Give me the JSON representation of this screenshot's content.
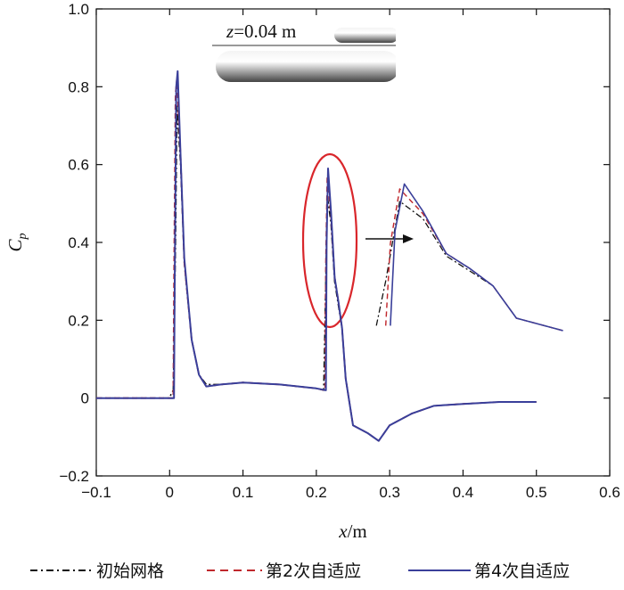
{
  "chart_data": {
    "type": "line",
    "xlabel": "x/m",
    "ylabel": "Cp",
    "xlim": [
      -0.1,
      0.6
    ],
    "ylim": [
      -0.2,
      1.0
    ],
    "x_ticks": [
      "−0.1",
      "0",
      "0.1",
      "0.2",
      "0.3",
      "0.4",
      "0.5",
      "0.6"
    ],
    "y_ticks": [
      "−0.2",
      "0",
      "0.2",
      "0.4",
      "0.6",
      "0.8",
      "1.0"
    ],
    "annotation": "z = 0.04 m",
    "colors": {
      "initial": "#111111",
      "adapt2": "#c0282d",
      "adapt4": "#3a3f9a",
      "highlight": "#d9262b"
    },
    "series": [
      {
        "name": "初始网格",
        "style": "dash-dot",
        "x": [
          -0.1,
          0.0,
          0.002,
          0.005,
          0.008,
          0.01,
          0.015,
          0.02,
          0.03,
          0.04,
          0.05,
          0.07,
          0.1,
          0.15,
          0.2,
          0.21,
          0.212,
          0.215,
          0.22,
          0.225,
          0.23,
          0.235,
          0.24,
          0.25,
          0.27,
          0.285,
          0.3,
          0.33,
          0.36,
          0.4,
          0.45,
          0.5
        ],
        "y": [
          0.0,
          0.0,
          0.01,
          0.02,
          0.4,
          0.75,
          0.6,
          0.35,
          0.15,
          0.06,
          0.035,
          0.035,
          0.04,
          0.035,
          0.025,
          0.02,
          0.2,
          0.52,
          0.45,
          0.3,
          0.24,
          0.18,
          0.05,
          -0.07,
          -0.09,
          -0.11,
          -0.07,
          -0.04,
          -0.02,
          -0.015,
          -0.01,
          -0.01
        ]
      },
      {
        "name": "第2次自适应",
        "style": "dashed",
        "x": [
          -0.1,
          0.005,
          0.006,
          0.008,
          0.01,
          0.015,
          0.02,
          0.03,
          0.04,
          0.05,
          0.07,
          0.1,
          0.15,
          0.2,
          0.212,
          0.213,
          0.215,
          0.22,
          0.225,
          0.23,
          0.235,
          0.24,
          0.25,
          0.27,
          0.285,
          0.3,
          0.33,
          0.36,
          0.4,
          0.45,
          0.5
        ],
        "y": [
          0.0,
          0.0,
          0.3,
          0.78,
          0.82,
          0.62,
          0.35,
          0.15,
          0.06,
          0.03,
          0.035,
          0.04,
          0.035,
          0.025,
          0.02,
          0.35,
          0.57,
          0.47,
          0.31,
          0.25,
          0.18,
          0.05,
          -0.07,
          -0.09,
          -0.11,
          -0.07,
          -0.04,
          -0.02,
          -0.015,
          -0.01,
          -0.01
        ]
      },
      {
        "name": "第4次自适应",
        "style": "solid",
        "x": [
          -0.1,
          0.006,
          0.007,
          0.009,
          0.011,
          0.015,
          0.02,
          0.03,
          0.04,
          0.05,
          0.07,
          0.1,
          0.15,
          0.2,
          0.213,
          0.214,
          0.216,
          0.22,
          0.225,
          0.23,
          0.235,
          0.24,
          0.25,
          0.27,
          0.285,
          0.3,
          0.33,
          0.36,
          0.4,
          0.45,
          0.5
        ],
        "y": [
          0.0,
          0.0,
          0.3,
          0.8,
          0.84,
          0.62,
          0.36,
          0.15,
          0.06,
          0.03,
          0.035,
          0.04,
          0.035,
          0.025,
          0.02,
          0.4,
          0.59,
          0.48,
          0.31,
          0.25,
          0.18,
          0.05,
          -0.07,
          -0.09,
          -0.11,
          -0.07,
          -0.04,
          -0.02,
          -0.015,
          -0.01,
          -0.01
        ]
      }
    ],
    "grid": false,
    "legend_position": "bottom",
    "inset": {
      "description_free": true
    }
  }
}
